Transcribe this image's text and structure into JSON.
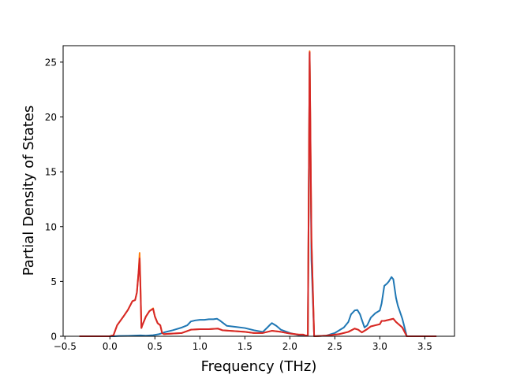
{
  "chart_data": {
    "type": "line",
    "title": "",
    "xlabel": "Frequency (THz)",
    "ylabel": "Partial Density of States",
    "xlim": [
      -0.52,
      3.83
    ],
    "ylim": [
      0,
      26.5
    ],
    "xticks": [
      -0.5,
      0.0,
      0.5,
      1.0,
      1.5,
      2.0,
      2.5,
      3.0,
      3.5
    ],
    "xtick_labels": [
      "−0.5",
      "0.0",
      "0.5",
      "1.0",
      "1.5",
      "2.0",
      "2.5",
      "3.0",
      "3.5"
    ],
    "yticks": [
      0,
      5,
      10,
      15,
      20,
      25
    ],
    "ytick_labels": [
      "0",
      "5",
      "10",
      "15",
      "20",
      "25"
    ],
    "grid": false,
    "legend": "none",
    "series": [
      {
        "color": "#1f77b4",
        "x": [
          -0.33,
          0.0,
          0.05,
          0.1,
          0.2,
          0.28,
          0.34,
          0.4,
          0.48,
          0.55,
          0.6,
          0.7,
          0.8,
          0.86,
          0.9,
          0.95,
          1.0,
          1.05,
          1.1,
          1.15,
          1.19,
          1.22,
          1.3,
          1.4,
          1.5,
          1.6,
          1.7,
          1.75,
          1.78,
          1.8,
          1.85,
          1.9,
          2.0,
          2.1,
          2.2,
          2.22,
          2.24,
          2.27,
          2.4,
          2.5,
          2.6,
          2.65,
          2.68,
          2.72,
          2.75,
          2.78,
          2.8,
          2.83,
          2.86,
          2.9,
          2.95,
          3.0,
          3.02,
          3.05,
          3.08,
          3.1,
          3.13,
          3.15,
          3.18,
          3.2,
          3.25,
          3.3,
          3.5,
          3.62
        ],
        "y": [
          0,
          0,
          0,
          0.03,
          0.04,
          0.06,
          0.08,
          0.05,
          0.1,
          0.2,
          0.35,
          0.55,
          0.8,
          1.0,
          1.35,
          1.45,
          1.5,
          1.5,
          1.55,
          1.55,
          1.6,
          1.45,
          0.95,
          0.85,
          0.75,
          0.55,
          0.4,
          0.8,
          1.05,
          1.2,
          0.95,
          0.6,
          0.3,
          0.1,
          0.05,
          25.8,
          7,
          0,
          0.05,
          0.3,
          0.8,
          1.3,
          2.0,
          2.35,
          2.4,
          2.0,
          1.5,
          0.8,
          1.0,
          1.7,
          2.1,
          2.35,
          3.0,
          4.6,
          4.8,
          5.0,
          5.4,
          5.2,
          3.5,
          2.8,
          1.6,
          0,
          0,
          0
        ]
      },
      {
        "color": "#ff7f0e",
        "x": [
          -0.33,
          0.0,
          0.04,
          0.08,
          0.15,
          0.2,
          0.25,
          0.28,
          0.3,
          0.32,
          0.33,
          0.34,
          0.35,
          0.36,
          0.4,
          0.44,
          0.48,
          0.5,
          0.53,
          0.56,
          0.58,
          0.6,
          0.8,
          0.9,
          1.0,
          1.1,
          1.2,
          1.25,
          1.5,
          1.6,
          1.7,
          1.8,
          1.9,
          2.0,
          2.1,
          2.15,
          2.18,
          2.2,
          2.22,
          2.24,
          2.27,
          2.4,
          2.55,
          2.65,
          2.72,
          2.76,
          2.8,
          2.85,
          2.9,
          2.95,
          3.0,
          3.02,
          3.05,
          3.1,
          3.15,
          3.18,
          3.25,
          3.3,
          3.5,
          3.62
        ],
        "y": [
          0,
          0,
          0.1,
          1.0,
          1.8,
          2.4,
          3.2,
          3.3,
          4.0,
          6.0,
          7.6,
          4.5,
          0.75,
          1.0,
          1.8,
          2.3,
          2.55,
          1.8,
          1.2,
          1.0,
          0.3,
          0.2,
          0.3,
          0.6,
          0.65,
          0.65,
          0.7,
          0.55,
          0.4,
          0.3,
          0.3,
          0.5,
          0.4,
          0.25,
          0.15,
          0.15,
          0.05,
          0.1,
          26.0,
          9.0,
          0,
          0.05,
          0.2,
          0.4,
          0.7,
          0.6,
          0.35,
          0.6,
          0.9,
          1.0,
          1.1,
          1.4,
          1.4,
          1.5,
          1.6,
          1.3,
          0.8,
          0,
          0,
          0
        ]
      },
      {
        "color": "#d62728",
        "x": [
          -0.33,
          0.0,
          0.04,
          0.08,
          0.15,
          0.2,
          0.25,
          0.28,
          0.3,
          0.32,
          0.33,
          0.34,
          0.35,
          0.36,
          0.4,
          0.44,
          0.48,
          0.5,
          0.53,
          0.56,
          0.58,
          0.6,
          0.8,
          0.9,
          1.0,
          1.1,
          1.2,
          1.25,
          1.5,
          1.6,
          1.7,
          1.8,
          1.9,
          2.0,
          2.1,
          2.15,
          2.18,
          2.2,
          2.22,
          2.24,
          2.27,
          2.4,
          2.55,
          2.65,
          2.72,
          2.76,
          2.8,
          2.85,
          2.9,
          2.95,
          3.0,
          3.02,
          3.05,
          3.1,
          3.15,
          3.18,
          3.25,
          3.3,
          3.5,
          3.62
        ],
        "y": [
          0,
          0,
          0.1,
          1.0,
          1.8,
          2.4,
          3.2,
          3.3,
          4.0,
          6.0,
          7.1,
          4.3,
          0.75,
          1.0,
          1.8,
          2.3,
          2.5,
          1.8,
          1.2,
          1.0,
          0.3,
          0.2,
          0.3,
          0.6,
          0.65,
          0.65,
          0.7,
          0.55,
          0.4,
          0.3,
          0.3,
          0.5,
          0.4,
          0.25,
          0.15,
          0.15,
          0.05,
          0.1,
          25.9,
          8.8,
          0,
          0.05,
          0.2,
          0.4,
          0.7,
          0.6,
          0.35,
          0.6,
          0.9,
          1.0,
          1.1,
          1.4,
          1.4,
          1.5,
          1.6,
          1.3,
          0.8,
          0,
          0,
          0
        ]
      }
    ]
  }
}
